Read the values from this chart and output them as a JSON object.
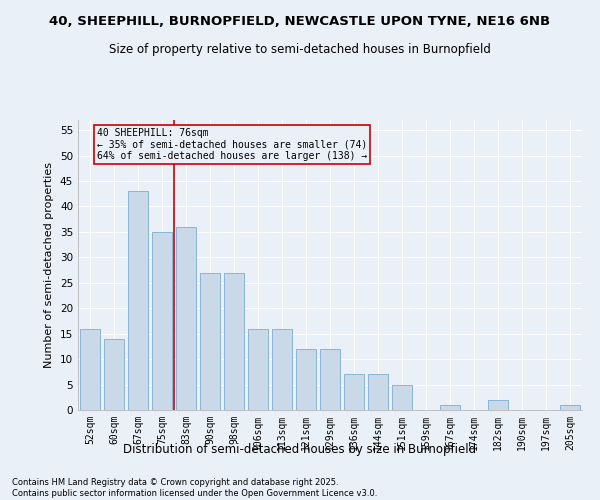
{
  "title1": "40, SHEEPHILL, BURNOPFIELD, NEWCASTLE UPON TYNE, NE16 6NB",
  "title2": "Size of property relative to semi-detached houses in Burnopfield",
  "xlabel": "Distribution of semi-detached houses by size in Burnopfield",
  "ylabel": "Number of semi-detached properties",
  "categories": [
    "52sqm",
    "60sqm",
    "67sqm",
    "75sqm",
    "83sqm",
    "90sqm",
    "98sqm",
    "106sqm",
    "113sqm",
    "121sqm",
    "129sqm",
    "136sqm",
    "144sqm",
    "151sqm",
    "159sqm",
    "167sqm",
    "174sqm",
    "182sqm",
    "190sqm",
    "197sqm",
    "205sqm"
  ],
  "values": [
    16,
    14,
    43,
    35,
    36,
    27,
    27,
    16,
    16,
    12,
    12,
    7,
    7,
    5,
    0,
    1,
    0,
    2,
    0,
    0,
    1
  ],
  "bar_color": "#c9d9e8",
  "bar_edge_color": "#7aaed6",
  "bar_width": 0.85,
  "vline_x": 3.5,
  "vline_color": "#cc0000",
  "annotation_title": "40 SHEEPHILL: 76sqm",
  "annotation_line1": "← 35% of semi-detached houses are smaller (74)",
  "annotation_line2": "64% of semi-detached houses are larger (138) →",
  "annotation_box_color": "#cc0000",
  "ylim": [
    0,
    57
  ],
  "yticks": [
    0,
    5,
    10,
    15,
    20,
    25,
    30,
    35,
    40,
    45,
    50,
    55
  ],
  "footnote1": "Contains HM Land Registry data © Crown copyright and database right 2025.",
  "footnote2": "Contains public sector information licensed under the Open Government Licence v3.0.",
  "bg_color": "#eaf0f8",
  "grid_color": "#ffffff"
}
